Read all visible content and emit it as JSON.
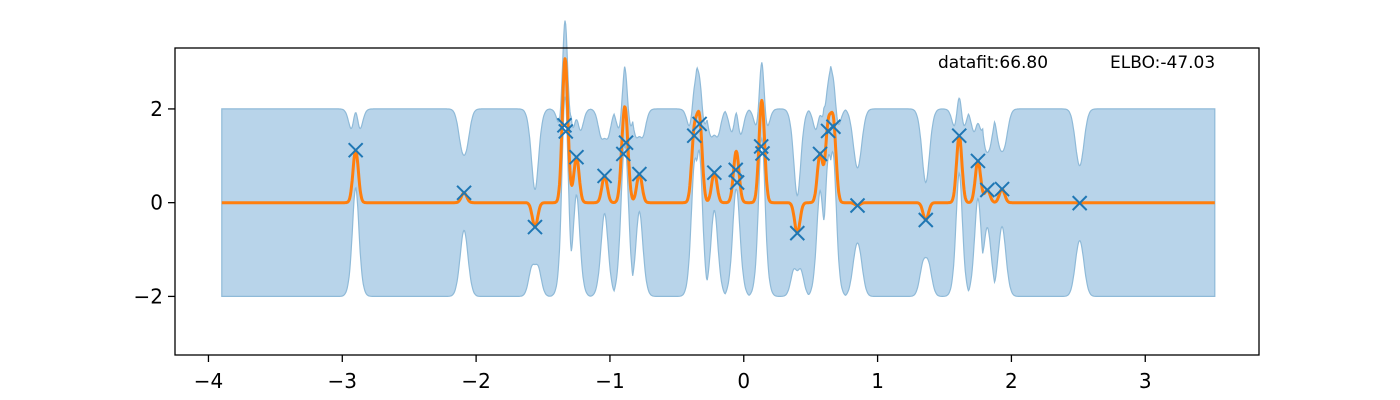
{
  "chart_data": {
    "type": "line",
    "title": "",
    "xlabel": "",
    "ylabel": "",
    "xlim": [
      -4.25,
      3.85
    ],
    "ylim": [
      -3.25,
      3.3
    ],
    "xticks": [
      -4,
      -3,
      -2,
      -1,
      0,
      1,
      2,
      3
    ],
    "xtick_labels": [
      "−4",
      "−3",
      "−2",
      "−1",
      "0",
      "1",
      "2",
      "3"
    ],
    "yticks": [
      -2,
      0,
      2
    ],
    "ytick_labels": [
      "−2",
      "0",
      "2"
    ],
    "grid": false,
    "annotations": {
      "datafit": "datafit:66.80",
      "elbo": "ELBO:-47.03"
    },
    "colors": {
      "observations": "#1f77b4",
      "mean": "#ff7f0e",
      "band_fill": "#b8d4ea",
      "band_edge": "#8fbad8"
    },
    "mean_range": [
      -3.9,
      3.52
    ],
    "band_halfwidth": 2.0,
    "observations": {
      "x": [
        -2.9,
        -2.09,
        -1.56,
        -1.34,
        -1.33,
        -1.25,
        -1.04,
        -0.9,
        -0.88,
        -0.78,
        -0.37,
        -0.33,
        -0.22,
        -0.06,
        -0.05,
        0.13,
        0.14,
        0.4,
        0.57,
        0.63,
        0.67,
        0.85,
        1.36,
        1.61,
        1.75,
        1.82,
        1.93,
        2.51
      ],
      "y": [
        1.12,
        0.21,
        -0.52,
        1.65,
        1.52,
        0.97,
        0.57,
        1.04,
        1.28,
        0.61,
        1.43,
        1.68,
        0.64,
        0.7,
        0.43,
        1.2,
        1.05,
        -0.65,
        1.04,
        1.53,
        1.62,
        -0.06,
        -0.37,
        1.43,
        0.89,
        0.27,
        0.29,
        -0.01
      ]
    }
  }
}
